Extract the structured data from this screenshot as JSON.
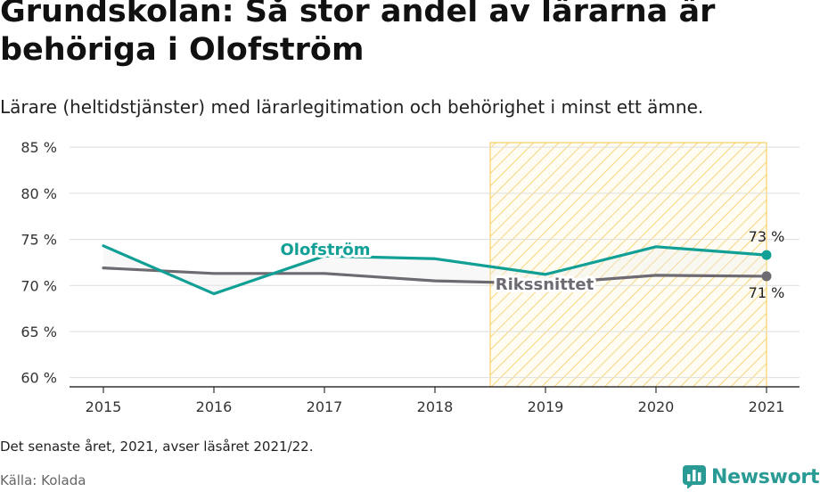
{
  "header": {
    "title": "Grundskolan: Så stor andel av lärarna är behöriga i Olofström",
    "subtitle": "Lärare (heltidstjänster) med lärarlegitimation och behörighet i minst ett ämne."
  },
  "chart_data": {
    "type": "line",
    "x": [
      2015,
      2016,
      2017,
      2018,
      2019,
      2020,
      2021
    ],
    "x_tick_labels": [
      "2015",
      "2016",
      "2017",
      "2018",
      "2019",
      "2020",
      "2021"
    ],
    "ylim": [
      59,
      85.5
    ],
    "y_ticks": [
      60,
      65,
      70,
      75,
      80,
      85
    ],
    "y_tick_labels": [
      "60 %",
      "65 %",
      "70 %",
      "75 %",
      "80 %",
      "85 %"
    ],
    "grid": true,
    "highlight_range": [
      2018.5,
      2021
    ],
    "series": [
      {
        "name": "Olofström",
        "values": [
          74.3,
          69.1,
          73.2,
          72.9,
          71.2,
          74.2,
          73.3
        ],
        "color": "#12a096",
        "end_label": "73 %"
      },
      {
        "name": "Rikssnittet",
        "values": [
          71.9,
          71.3,
          71.3,
          70.5,
          70.2,
          71.1,
          71.0
        ],
        "color": "#6e6a72",
        "end_label": "71 %"
      }
    ]
  },
  "footer": {
    "note": "Det senaste året, 2021, avser läsåret 2021/22.",
    "source": "Källa: Kolada",
    "brand": "Newsworthy",
    "brand_color": "#2a9a95"
  }
}
